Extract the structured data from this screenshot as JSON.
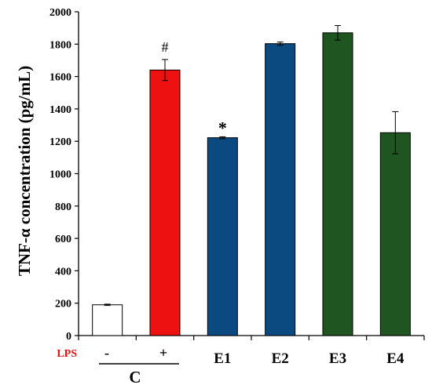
{
  "chart_data": {
    "type": "bar",
    "categories": [
      "",
      "",
      "E1",
      "E2",
      "E3",
      "E4"
    ],
    "values": [
      190,
      1640,
      1222,
      1803,
      1870,
      1253
    ],
    "errors": [
      4,
      65,
      6,
      10,
      45,
      130
    ],
    "bar_colors": [
      "#ffffff",
      "#ee1111",
      "#0b4a80",
      "#0b4a80",
      "#1f5520",
      "#1f5520"
    ],
    "annotations": [
      "",
      "#",
      "*",
      "",
      "",
      ""
    ],
    "ylabel": "TNF-α concentration (pg/mL)",
    "ylim": [
      0,
      2000
    ],
    "yticks": [
      "0",
      "200",
      "400",
      "600",
      "800",
      "1000",
      "1200",
      "1400",
      "1600",
      "1800",
      "2000"
    ],
    "grid": false,
    "lps_label": "LPS",
    "lps_signs": [
      "-",
      "+"
    ],
    "group_label": "C",
    "lps_color": "#dd1111"
  }
}
